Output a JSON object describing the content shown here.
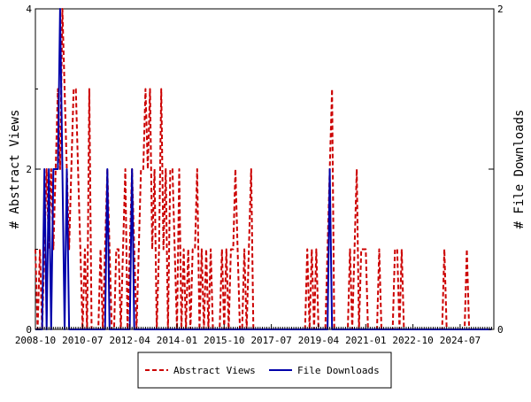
{
  "chart_data": {
    "type": "line",
    "xlabel": "",
    "ylabel_left": "# Abstract Views",
    "ylabel_right": "# File Downloads",
    "x_tick_labels": [
      "2008-10",
      "2010-07",
      "2012-04",
      "2014-01",
      "2015-10",
      "2017-07",
      "2019-04",
      "2021-01",
      "2022-10",
      "2024-07"
    ],
    "xlim": [
      "2008-10",
      "2025-10"
    ],
    "ylim_left": [
      0,
      4
    ],
    "ylim_right": [
      0,
      2
    ],
    "y_ticks_left": [
      "0",
      "2",
      "4"
    ],
    "y_ticks_right": [
      "0",
      "1",
      "2"
    ],
    "legend_position": "bottom-center",
    "grid": false,
    "series": [
      {
        "name": "Abstract Views",
        "axis": "left",
        "color": "#cc0000",
        "style": "dashed",
        "points": [
          [
            "2008-10",
            1
          ],
          [
            "2008-11",
            0
          ],
          [
            "2008-12",
            1
          ],
          [
            "2009-01",
            0
          ],
          [
            "2009-02",
            1
          ],
          [
            "2009-03",
            2
          ],
          [
            "2009-04",
            1
          ],
          [
            "2009-05",
            2
          ],
          [
            "2009-06",
            1
          ],
          [
            "2009-07",
            2
          ],
          [
            "2009-08",
            3
          ],
          [
            "2009-09",
            2
          ],
          [
            "2009-10",
            4
          ],
          [
            "2009-11",
            3
          ],
          [
            "2009-12",
            2
          ],
          [
            "2010-01",
            1
          ],
          [
            "2010-02",
            2
          ],
          [
            "2010-03",
            3
          ],
          [
            "2010-04",
            3
          ],
          [
            "2010-05",
            2
          ],
          [
            "2010-06",
            1
          ],
          [
            "2010-07",
            0
          ],
          [
            "2010-08",
            1
          ],
          [
            "2010-09",
            0
          ],
          [
            "2010-10",
            3
          ],
          [
            "2010-11",
            0
          ],
          [
            "2010-12",
            0
          ],
          [
            "2011-01",
            0
          ],
          [
            "2011-02",
            0
          ],
          [
            "2011-03",
            1
          ],
          [
            "2011-04",
            0
          ],
          [
            "2011-05",
            1
          ],
          [
            "2011-06",
            2
          ],
          [
            "2011-07",
            1
          ],
          [
            "2011-08",
            0
          ],
          [
            "2011-09",
            0
          ],
          [
            "2011-10",
            1
          ],
          [
            "2011-11",
            1
          ],
          [
            "2011-12",
            0
          ],
          [
            "2012-01",
            1
          ],
          [
            "2012-02",
            2
          ],
          [
            "2012-03",
            0
          ],
          [
            "2012-04",
            1
          ],
          [
            "2012-05",
            2
          ],
          [
            "2012-06",
            1
          ],
          [
            "2012-07",
            0
          ],
          [
            "2012-08",
            1
          ],
          [
            "2012-09",
            2
          ],
          [
            "2012-10",
            2
          ],
          [
            "2012-11",
            3
          ],
          [
            "2012-12",
            2
          ],
          [
            "2013-01",
            3
          ],
          [
            "2013-02",
            1
          ],
          [
            "2013-03",
            2
          ],
          [
            "2013-04",
            0
          ],
          [
            "2013-05",
            1
          ],
          [
            "2013-06",
            3
          ],
          [
            "2013-07",
            1
          ],
          [
            "2013-08",
            2
          ],
          [
            "2013-09",
            0
          ],
          [
            "2013-10",
            2
          ],
          [
            "2013-11",
            2
          ],
          [
            "2013-12",
            1
          ],
          [
            "2014-01",
            0
          ],
          [
            "2014-02",
            2
          ],
          [
            "2014-03",
            0
          ],
          [
            "2014-04",
            1
          ],
          [
            "2014-05",
            0
          ],
          [
            "2014-06",
            1
          ],
          [
            "2014-07",
            0
          ],
          [
            "2014-08",
            1
          ],
          [
            "2014-09",
            1
          ],
          [
            "2014-10",
            2
          ],
          [
            "2014-11",
            0
          ],
          [
            "2014-12",
            1
          ],
          [
            "2015-01",
            0
          ],
          [
            "2015-02",
            1
          ],
          [
            "2015-03",
            0
          ],
          [
            "2015-04",
            1
          ],
          [
            "2015-05",
            0
          ],
          [
            "2015-06",
            0
          ],
          [
            "2015-07",
            0
          ],
          [
            "2015-08",
            0
          ],
          [
            "2015-09",
            1
          ],
          [
            "2015-10",
            0
          ],
          [
            "2015-11",
            1
          ],
          [
            "2015-12",
            0
          ],
          [
            "2016-01",
            1
          ],
          [
            "2016-02",
            1
          ],
          [
            "2016-03",
            2
          ],
          [
            "2016-04",
            1
          ],
          [
            "2016-05",
            0
          ],
          [
            "2016-06",
            0
          ],
          [
            "2016-07",
            1
          ],
          [
            "2016-08",
            0
          ],
          [
            "2016-09",
            1
          ],
          [
            "2016-10",
            2
          ],
          [
            "2016-11",
            0
          ],
          [
            "2016-12",
            0
          ],
          [
            "2017-01",
            0
          ],
          [
            "2017-02",
            0
          ],
          [
            "2017-03",
            0
          ],
          [
            "2017-04",
            0
          ],
          [
            "2017-05",
            0
          ],
          [
            "2017-06",
            0
          ],
          [
            "2017-07",
            0
          ],
          [
            "2017-08",
            0
          ],
          [
            "2017-09",
            0
          ],
          [
            "2017-10",
            0
          ],
          [
            "2017-11",
            0
          ],
          [
            "2017-12",
            0
          ],
          [
            "2018-01",
            0
          ],
          [
            "2018-02",
            0
          ],
          [
            "2018-03",
            0
          ],
          [
            "2018-04",
            0
          ],
          [
            "2018-05",
            0
          ],
          [
            "2018-06",
            0
          ],
          [
            "2018-07",
            0
          ],
          [
            "2018-08",
            0
          ],
          [
            "2018-09",
            0
          ],
          [
            "2018-10",
            0
          ],
          [
            "2018-11",
            1
          ],
          [
            "2018-12",
            0
          ],
          [
            "2019-01",
            1
          ],
          [
            "2019-02",
            0
          ],
          [
            "2019-03",
            1
          ],
          [
            "2019-04",
            0
          ],
          [
            "2019-05",
            0
          ],
          [
            "2019-06",
            0
          ],
          [
            "2019-07",
            0
          ],
          [
            "2019-08",
            1
          ],
          [
            "2019-09",
            2
          ],
          [
            "2019-10",
            3
          ],
          [
            "2019-11",
            0
          ],
          [
            "2019-12",
            0
          ],
          [
            "2020-01",
            0
          ],
          [
            "2020-02",
            0
          ],
          [
            "2020-03",
            0
          ],
          [
            "2020-04",
            0
          ],
          [
            "2020-05",
            0
          ],
          [
            "2020-06",
            1
          ],
          [
            "2020-07",
            0
          ],
          [
            "2020-08",
            1
          ],
          [
            "2020-09",
            2
          ],
          [
            "2020-10",
            0
          ],
          [
            "2020-11",
            1
          ],
          [
            "2020-12",
            1
          ],
          [
            "2021-01",
            1
          ],
          [
            "2021-02",
            0
          ],
          [
            "2021-03",
            0
          ],
          [
            "2021-04",
            0
          ],
          [
            "2021-05",
            0
          ],
          [
            "2021-06",
            0
          ],
          [
            "2021-07",
            1
          ],
          [
            "2021-08",
            0
          ],
          [
            "2021-09",
            0
          ],
          [
            "2021-10",
            0
          ],
          [
            "2021-11",
            0
          ],
          [
            "2021-12",
            0
          ],
          [
            "2022-01",
            0
          ],
          [
            "2022-02",
            1
          ],
          [
            "2022-03",
            1
          ],
          [
            "2022-04",
            0
          ],
          [
            "2022-05",
            1
          ],
          [
            "2022-06",
            0
          ],
          [
            "2022-07",
            0
          ],
          [
            "2022-08",
            0
          ],
          [
            "2022-09",
            0
          ],
          [
            "2022-10",
            0
          ],
          [
            "2022-11",
            0
          ],
          [
            "2022-12",
            0
          ],
          [
            "2023-01",
            0
          ],
          [
            "2023-02",
            0
          ],
          [
            "2023-03",
            0
          ],
          [
            "2023-04",
            0
          ],
          [
            "2023-05",
            0
          ],
          [
            "2023-06",
            0
          ],
          [
            "2023-07",
            0
          ],
          [
            "2023-08",
            0
          ],
          [
            "2023-09",
            0
          ],
          [
            "2023-10",
            0
          ],
          [
            "2023-11",
            0
          ],
          [
            "2023-12",
            1
          ],
          [
            "2024-01",
            0
          ],
          [
            "2024-02",
            0
          ],
          [
            "2024-03",
            0
          ],
          [
            "2024-04",
            0
          ],
          [
            "2024-05",
            0
          ],
          [
            "2024-06",
            0
          ],
          [
            "2024-07",
            0
          ],
          [
            "2024-08",
            0
          ],
          [
            "2024-09",
            0
          ],
          [
            "2024-10",
            1
          ],
          [
            "2024-11",
            0
          ],
          [
            "2024-12",
            0
          ],
          [
            "2025-01",
            0
          ],
          [
            "2025-02",
            0
          ],
          [
            "2025-03",
            0
          ],
          [
            "2025-04",
            0
          ],
          [
            "2025-05",
            0
          ],
          [
            "2025-06",
            0
          ],
          [
            "2025-07",
            0
          ],
          [
            "2025-08",
            0
          ],
          [
            "2025-09",
            0
          ]
        ]
      },
      {
        "name": "File Downloads",
        "axis": "right",
        "color": "#0000aa",
        "style": "solid",
        "points": [
          [
            "2008-10",
            0
          ],
          [
            "2009-01",
            0
          ],
          [
            "2009-02",
            1
          ],
          [
            "2009-03",
            0
          ],
          [
            "2009-04",
            1
          ],
          [
            "2009-05",
            0
          ],
          [
            "2009-06",
            1
          ],
          [
            "2009-07",
            1
          ],
          [
            "2009-08",
            1
          ],
          [
            "2009-09",
            2
          ],
          [
            "2009-10",
            1
          ],
          [
            "2009-11",
            0
          ],
          [
            "2009-12",
            1
          ],
          [
            "2010-01",
            0
          ],
          [
            "2010-02",
            0
          ],
          [
            "2010-03",
            0
          ],
          [
            "2010-07",
            0
          ],
          [
            "2011-05",
            0
          ],
          [
            "2011-06",
            1
          ],
          [
            "2011-07",
            0
          ],
          [
            "2011-08",
            0
          ],
          [
            "2012-04",
            0
          ],
          [
            "2012-05",
            1
          ],
          [
            "2012-06",
            0
          ],
          [
            "2012-07",
            0
          ],
          [
            "2013-04",
            0
          ],
          [
            "2013-05",
            0
          ],
          [
            "2013-06",
            0
          ],
          [
            "2013-07",
            0
          ],
          [
            "2013-08",
            0
          ],
          [
            "2013-09",
            0
          ],
          [
            "2013-10",
            0
          ],
          [
            "2019-08",
            0
          ],
          [
            "2019-09",
            1
          ],
          [
            "2019-10",
            0
          ],
          [
            "2020-01",
            0
          ],
          [
            "2025-09",
            0
          ]
        ]
      }
    ]
  }
}
